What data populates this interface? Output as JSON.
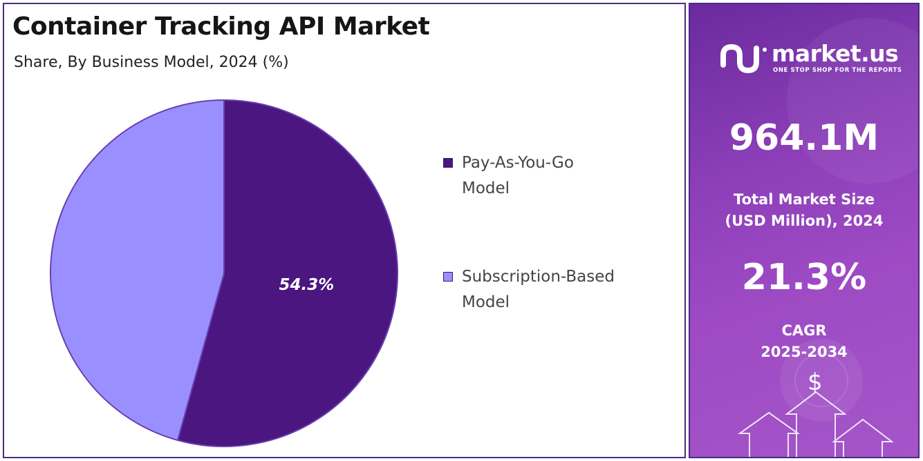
{
  "header": {
    "title": "Container Tracking API Market",
    "subtitle": "Share, By Business Model, 2024 (%)"
  },
  "chart_data": {
    "type": "pie",
    "categories": [
      "Pay-As-You-Go Model",
      "Subscription-Based Model"
    ],
    "values": [
      54.3,
      45.7
    ],
    "data_labels": [
      "54.3%",
      ""
    ],
    "colors": [
      "#4b1680",
      "#9a8fff"
    ],
    "legend_position": "right"
  },
  "legend": {
    "items": [
      {
        "line1": "Pay-As-You-Go",
        "line2": "Model",
        "color": "#4b1680"
      },
      {
        "line1": "Subscription-Based",
        "line2": "Model",
        "color": "#9a8fff"
      }
    ]
  },
  "sidebar": {
    "brand_name": "market.us",
    "brand_tagline": "ONE STOP SHOP FOR THE REPORTS",
    "market_size_value": "964.1M",
    "market_size_label_line1": "Total Market Size",
    "market_size_label_line2": "(USD Million), 2024",
    "cagr_value": "21.3%",
    "cagr_label_line1": "CAGR",
    "cagr_label_line2": "2025-2034",
    "dollar_symbol": "$",
    "icons": [
      "market-us-logo-icon",
      "dollar-icon",
      "arrow-up-icon"
    ]
  }
}
